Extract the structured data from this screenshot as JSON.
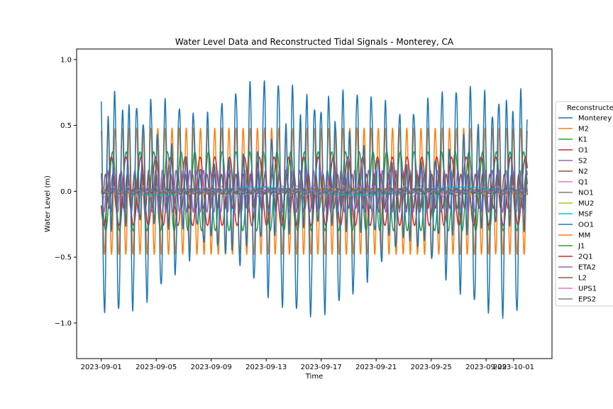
{
  "chart_data": {
    "type": "line",
    "title": "Water Level Data and Reconstructed Tidal Signals - Monterey, CA",
    "xlabel": "Time",
    "ylabel": "Water Level (m)",
    "x_range": [
      "2023-08-30T05:00",
      "2023-10-03T19:00"
    ],
    "ylim": [
      -1.27,
      1.08
    ],
    "x_start": "2023-09-01T00:00",
    "x_end": "2023-10-02T00:00",
    "x_ticks": [
      "2023-09-01",
      "2023-09-05",
      "2023-09-09",
      "2023-09-13",
      "2023-09-17",
      "2023-09-21",
      "2023-09-25",
      "2023-09-29",
      "2023-10-01"
    ],
    "y_ticks": [
      1.0,
      0.5,
      0.0,
      -0.5,
      -1.0
    ],
    "y_tick_labels": [
      "1.0",
      "0.5",
      "0.0",
      "−0.5",
      "−1.0"
    ],
    "grid": false,
    "legend": {
      "title": "Reconstructe",
      "placement": "right, outside, clipped"
    },
    "series": [
      {
        "name": "Monterey",
        "color": "#1f77b4",
        "kind": "observed",
        "amplitude_range": [
          0.55,
          1.15
        ]
      },
      {
        "name": "M2",
        "color": "#ff7f0e",
        "amplitude": 0.48,
        "period_hours": 12.42
      },
      {
        "name": "K1",
        "color": "#2ca02c",
        "amplitude": 0.3,
        "period_hours": 23.93
      },
      {
        "name": "O1",
        "color": "#d62728",
        "amplitude": 0.26,
        "period_hours": 25.82
      },
      {
        "name": "S2",
        "color": "#9467bd",
        "amplitude": 0.16,
        "period_hours": 12.0
      },
      {
        "name": "N2",
        "color": "#8c564b",
        "amplitude": 0.13,
        "period_hours": 12.66
      },
      {
        "name": "Q1",
        "color": "#e377c2",
        "amplitude": 0.04,
        "period_hours": 26.87
      },
      {
        "name": "NO1",
        "color": "#7f7f7f",
        "amplitude": 0.02,
        "period_hours": 24.83
      },
      {
        "name": "MU2",
        "color": "#bcbd22",
        "amplitude": 0.02,
        "period_hours": 12.87
      },
      {
        "name": "MSF",
        "color": "#17becf",
        "amplitude": 0.03,
        "period_hours": 354.37
      },
      {
        "name": "OO1",
        "color": "#1f77b4",
        "amplitude": 0.01,
        "period_hours": 22.31
      },
      {
        "name": "MM",
        "color": "#ff7f0e",
        "amplitude": 0.02,
        "period_hours": 661.3
      },
      {
        "name": "J1",
        "color": "#2ca02c",
        "amplitude": 0.02,
        "period_hours": 23.1
      },
      {
        "name": "2Q1",
        "color": "#d62728",
        "amplitude": 0.01,
        "period_hours": 28.01
      },
      {
        "name": "ETA2",
        "color": "#9467bd",
        "amplitude": 0.01,
        "period_hours": 11.75
      },
      {
        "name": "L2",
        "color": "#8c564b",
        "amplitude": 0.02,
        "period_hours": 12.19
      },
      {
        "name": "UPS1",
        "color": "#e377c2",
        "amplitude": 0.01,
        "period_hours": 21.58
      },
      {
        "name": "EPS2",
        "color": "#7f7f7f",
        "amplitude": 0.01,
        "period_hours": 13.13
      }
    ]
  }
}
